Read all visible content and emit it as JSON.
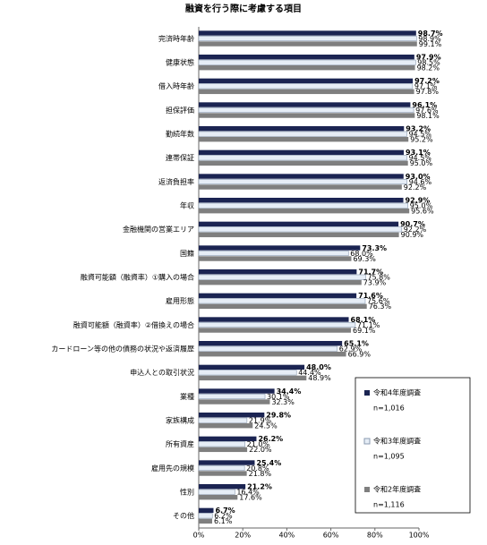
{
  "chart_data": {
    "type": "bar",
    "orientation": "horizontal",
    "title": "融資を行う際に考慮する項目",
    "categories": [
      "完済時年齢",
      "健康状態",
      "借入時年齢",
      "担保評価",
      "勤続年数",
      "連帯保証",
      "返済負担率",
      "年収",
      "金融機関の営業エリア",
      "国籍",
      "融資可能額（融資率）①購入の場合",
      "雇用形態",
      "融資可能額（融資率）②借換えの場合",
      "カードローン等の他の債務の状況や返済履歴",
      "申込人との取引状況",
      "業種",
      "家族構成",
      "所有資産",
      "雇用先の規模",
      "性別",
      "その他"
    ],
    "series": [
      {
        "name": "令和4年度調査",
        "sample": "n=1,016",
        "color": "#1b2452",
        "values": [
          98.7,
          97.9,
          97.2,
          96.1,
          93.2,
          93.1,
          93.0,
          92.9,
          90.7,
          73.3,
          71.7,
          71.6,
          68.1,
          65.1,
          48.0,
          34.4,
          29.8,
          26.2,
          25.4,
          21.2,
          6.7
        ],
        "value_labels": [
          "98.7%",
          "97.9%",
          "97.2%",
          "96.1%",
          "93.2%",
          "93.1%",
          "93.0%",
          "92.9%",
          "90.7%",
          "73.3%",
          "71.7%",
          "71.6%",
          "68.1%",
          "65.1%",
          "48.0%",
          "34.4%",
          "29.8%",
          "26.2%",
          "25.4%",
          "21.2%",
          "6.7%"
        ]
      },
      {
        "name": "令和3年度調査",
        "sample": "n=1,095",
        "color": "#e6edf6",
        "values": [
          98.9,
          98.5,
          97.1,
          97.6,
          94.5,
          94.5,
          94.6,
          95.0,
          92.2,
          68.0,
          75.8,
          75.6,
          71.1,
          62.9,
          44.4,
          30.1,
          21.9,
          21.0,
          20.8,
          16.4,
          6.2
        ],
        "value_labels": [
          "98.9%",
          "98.5%",
          "97.1%",
          "97.6%",
          "94.5%",
          "94.5%",
          "94.6%",
          "95.0%",
          "92.2%",
          "68.0%",
          "75.8%",
          "75.6%",
          "71.1%",
          "62.9%",
          "44.4%",
          "30.1%",
          "21.9%",
          "21.0%",
          "20.8%",
          "16.4%",
          "6.2%"
        ]
      },
      {
        "name": "令和2年度調査",
        "sample": "n=1,116",
        "color": "#7f7f7f",
        "values": [
          99.1,
          98.2,
          97.8,
          98.1,
          95.2,
          95.0,
          92.2,
          95.6,
          90.9,
          69.3,
          73.9,
          76.3,
          69.1,
          66.9,
          48.9,
          32.3,
          24.5,
          22.0,
          21.8,
          17.6,
          6.1
        ],
        "value_labels": [
          "99.1%",
          "98.2%",
          "97.8%",
          "98.1%",
          "95.2%",
          "95.0%",
          "92.2%",
          "95.6%",
          "90.9%",
          "69.3%",
          "73.9%",
          "76.3%",
          "69.1%",
          "66.9%",
          "48.9%",
          "32.3%",
          "24.5%",
          "22.0%",
          "21.8%",
          "17.6%",
          "6.1%"
        ]
      }
    ],
    "xlim": [
      0,
      100
    ],
    "xticks": [
      {
        "value": 0,
        "label": "0%"
      },
      {
        "value": 20,
        "label": "20%"
      },
      {
        "value": 40,
        "label": "40%"
      },
      {
        "value": 60,
        "label": "60%"
      },
      {
        "value": 80,
        "label": "80%"
      },
      {
        "value": 100,
        "label": "100%"
      }
    ],
    "grid": false,
    "legend": "lower right"
  }
}
